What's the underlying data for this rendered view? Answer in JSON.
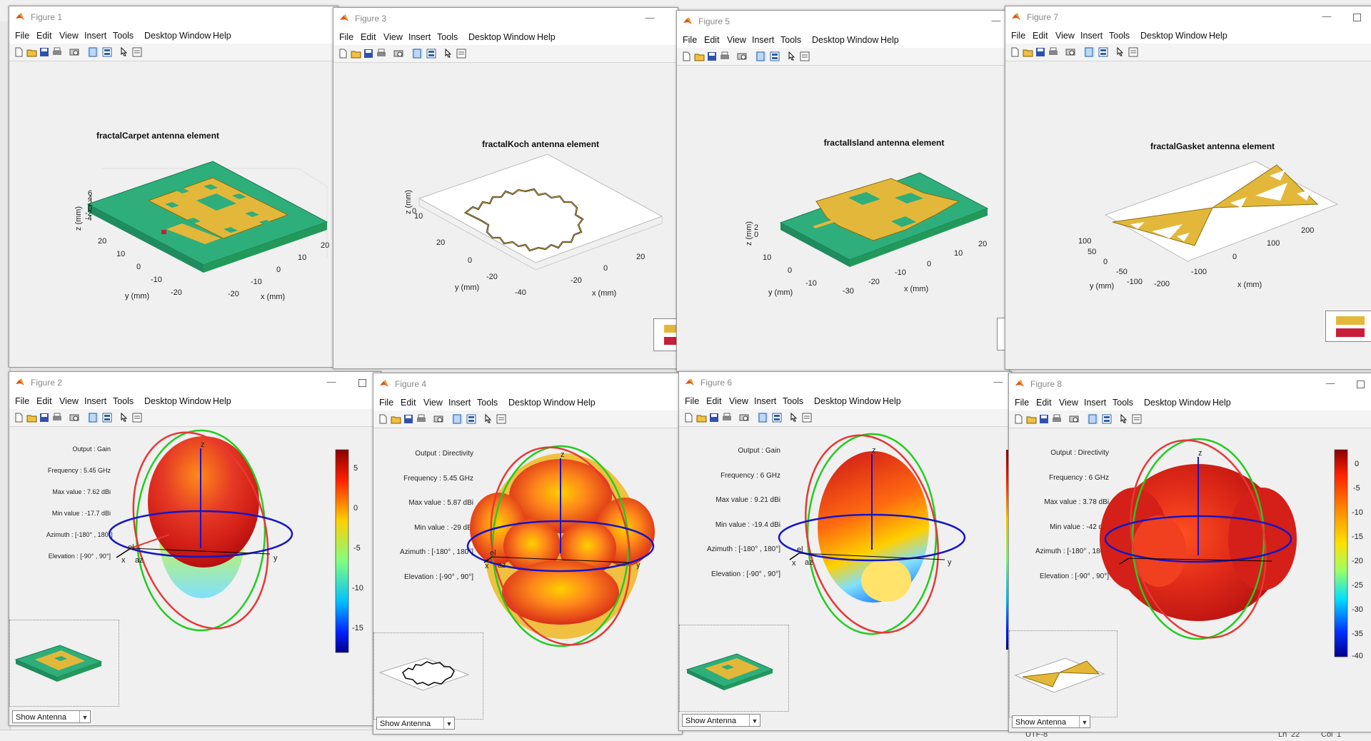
{
  "menu": [
    "File",
    "Edit",
    "View",
    "Insert",
    "Tools",
    "Desktop",
    "Window",
    "Help"
  ],
  "icons": [
    "new-file-icon",
    "open-folder-icon",
    "save-icon",
    "print-icon",
    "print-preview-icon",
    "dock-icon",
    "property-editor-icon",
    "pointer-icon",
    "plot-browser-icon"
  ],
  "colors": {
    "metal": "#e3b83a",
    "substrate": "#2eae7a",
    "feed": "#c81e3a",
    "accent_red": "#e53935",
    "ring_green": "#22cc22",
    "ring_blue": "#1515c8"
  },
  "status_bar": {
    "ln_label": "Ln",
    "ln_value": "22",
    "col_label": "Col",
    "col_value": "1",
    "encoding": "UTF-8"
  },
  "figures": {
    "fig1": {
      "title": "Figure 1",
      "plot_title": "fractalCarpet antenna element",
      "z_label": "z (mm)",
      "y_label": "y (mm)",
      "x_label": "x (mm)",
      "z_ticks": [
        "6",
        "4",
        "2",
        "0",
        "-2",
        "-4"
      ],
      "y_ticks": [
        "20",
        "10",
        "0",
        "-10",
        "-20"
      ],
      "x_ticks": [
        "-20",
        "-10",
        "0",
        "10",
        "20"
      ]
    },
    "fig3": {
      "title": "Figure 3",
      "plot_title": "fractalKoch antenna element",
      "z_label": "z (mm)",
      "y_label": "y (mm)",
      "x_label": "x (mm)",
      "z_ticks": [
        "10",
        "0"
      ],
      "y_ticks": [
        "20",
        "0",
        "-20",
        "-40"
      ],
      "x_ticks": [
        "-20",
        "0",
        "20"
      ]
    },
    "fig5": {
      "title": "Figure 5",
      "plot_title": "fractalIsland antenna element",
      "z_label": "z (mm)",
      "y_label": "y (mm)",
      "x_label": "x (mm)",
      "z_ticks": [
        "2",
        "0"
      ],
      "y_ticks": [
        "10",
        "0",
        "-10"
      ],
      "x_ticks": [
        "-30",
        "-20",
        "-10",
        "0",
        "10",
        "20"
      ]
    },
    "fig7": {
      "title": "Figure 7",
      "plot_title": "fractalGasket antenna element",
      "z_label": "",
      "y_label": "y (mm)",
      "x_label": "x (mm)",
      "y_ticks": [
        "100",
        "50",
        "0",
        "-50",
        "-100"
      ],
      "x_ticks": [
        "-200",
        "-100",
        "0",
        "100",
        "200"
      ]
    },
    "fig2": {
      "title": "Figure 2",
      "info": {
        "labels": [
          "Output :",
          "Frequency :",
          "Max value :",
          "Min value :",
          "Azimuth :",
          "Elevation :"
        ],
        "values": [
          "Gain",
          "5.45 GHz",
          "7.62 dBi",
          "-17.7 dBi",
          "[-180° , 180°]",
          "[-90° , 90°]"
        ]
      },
      "colorbar_ticks": [
        "5",
        "0",
        "-5",
        "-10",
        "-15"
      ],
      "dropdown": "Show Antenna"
    },
    "fig4": {
      "title": "Figure 4",
      "info": {
        "labels": [
          "Output :",
          "Frequency :",
          "Max value :",
          "Min value :",
          "Azimuth :",
          "Elevation :"
        ],
        "values": [
          "Directivity",
          "5.45 GHz",
          "5.87 dBi",
          "-29 dBi",
          "[-180° , 180°]",
          "[-90° , 90°]"
        ]
      },
      "dropdown": "Show Antenna"
    },
    "fig6": {
      "title": "Figure 6",
      "info": {
        "labels": [
          "Output :",
          "Frequency :",
          "Max value :",
          "Min value :",
          "Azimuth :",
          "Elevation :"
        ],
        "values": [
          "Gain",
          "6 GHz",
          "9.21 dBi",
          "-19.4 dBi",
          "[-180° , 180°]",
          "[-90° , 90°]"
        ]
      },
      "dropdown": "Show Antenna"
    },
    "fig8": {
      "title": "Figure 8",
      "info": {
        "labels": [
          "Output :",
          "Frequency :",
          "Max value :",
          "Min value :",
          "Azimuth :",
          "Elevation :"
        ],
        "values": [
          "Directivity",
          "6 GHz",
          "3.78 dBi",
          "-42 dBi",
          "[-180° , 180°]",
          "[-90° , 90°]"
        ]
      },
      "colorbar_ticks": [
        "0",
        "-5",
        "-10",
        "-15",
        "-20",
        "-25",
        "-30",
        "-35",
        "-40"
      ],
      "dropdown": "Show Antenna"
    }
  },
  "axis_letters": {
    "x": "x",
    "y": "y",
    "z": "z",
    "el": "el",
    "az": "az"
  }
}
